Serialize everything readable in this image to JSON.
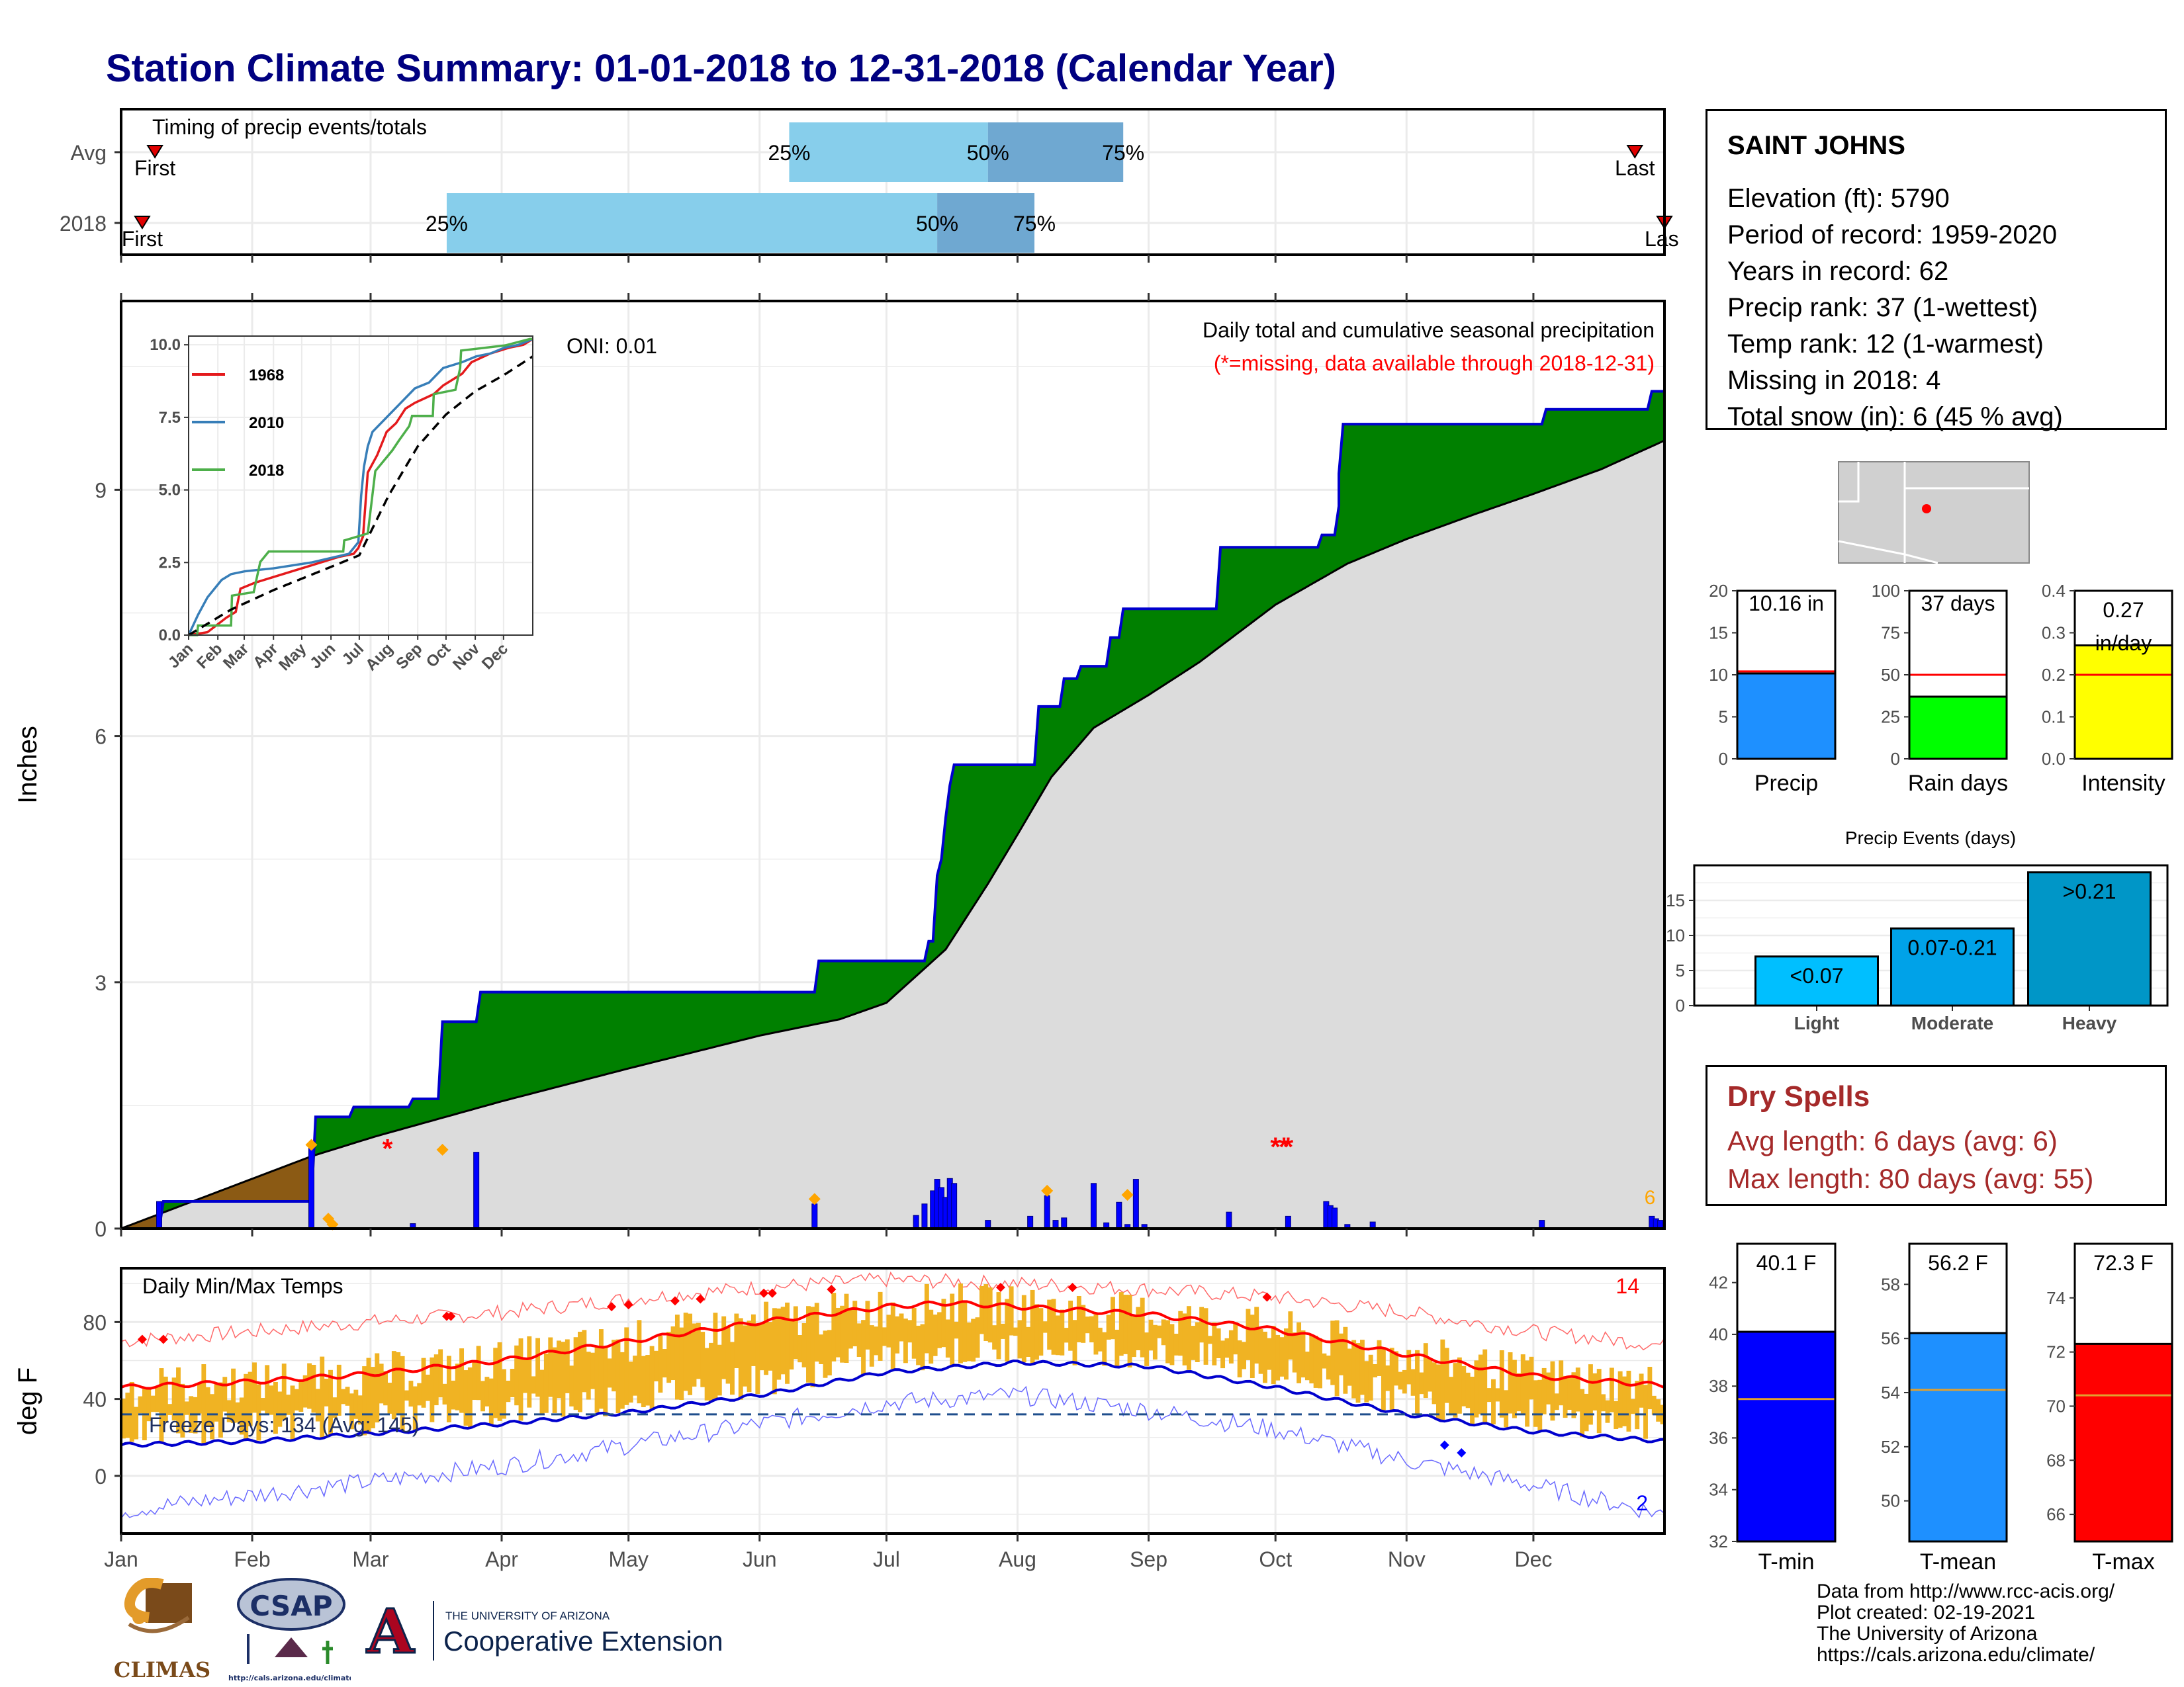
{
  "title": "Station Climate Summary: 01-01-2018 to 12-31-2018 (Calendar Year)",
  "colors": {
    "title": "#000080",
    "light_blue": "#87ceeb",
    "mid_blue": "#6fa8d1",
    "green": "#008000",
    "brown": "#8b5a14",
    "gray_fill": "#dcdcdc",
    "bar_blue": "#0000ff",
    "orange_marker": "#ffa500",
    "red": "#ff0000",
    "temp_orange": "#f0b323",
    "tmin_blue": "#0000ff",
    "tmean_blue": "#1e90ff",
    "tmax_red": "#ff0000",
    "dry_text": "#a52a2a"
  },
  "timing": {
    "label": "Timing of precip events/totals",
    "rows": [
      "Avg",
      "2018"
    ],
    "first_label": "First",
    "last_label": "Last",
    "last_label_clipped": "Las",
    "p25": "25%",
    "p50": "50%",
    "p75": "75%"
  },
  "station": {
    "name": "SAINT JOHNS",
    "lines": [
      "Elevation (ft): 5790",
      "Period of record: 1959-2020",
      "Years in record: 62",
      "Precip rank: 37 (1-wettest)",
      "Temp rank: 12 (1-warmest)",
      "Missing in 2018: 4",
      "Total snow (in): 6 (45 % avg)"
    ]
  },
  "precip_panel": {
    "ylabel": "Inches",
    "title": "Daily total and cumulative seasonal precipitation",
    "subtitle": "(*=missing, data available through 2018-12-31)",
    "oni": "ONI: 0.01",
    "snow_count": "6"
  },
  "inset": {
    "legend": [
      "1968",
      "2010",
      "2018"
    ],
    "legend_colors": [
      "#e41a1c",
      "#377eb8",
      "#4daf4a"
    ],
    "yticks": [
      "0.0",
      "2.5",
      "5.0",
      "7.5",
      "10.0"
    ],
    "xticks": [
      "Jan",
      "Feb",
      "Mar",
      "Apr",
      "May",
      "Jun",
      "Jul",
      "Aug",
      "Sep",
      "Oct",
      "Nov",
      "Dec"
    ]
  },
  "bars_precip": [
    {
      "label": "Precip",
      "value_label": "10.16 in",
      "yticks": [
        "0",
        "5",
        "10",
        "15",
        "20"
      ]
    },
    {
      "label": "Rain days",
      "value_label": "37 days",
      "yticks": [
        "0",
        "25",
        "50",
        "75",
        "100"
      ]
    },
    {
      "label": "Intensity",
      "value_label_1": "0.27",
      "value_label_2": "in/day",
      "yticks": [
        "0.0",
        "0.1",
        "0.2",
        "0.3",
        "0.4"
      ]
    }
  ],
  "events": {
    "title": "Precip Events (days)",
    "yticks": [
      "0",
      "5",
      "10",
      "15"
    ],
    "categories": [
      "Light",
      "Moderate",
      "Heavy"
    ],
    "labels": [
      "<0.07",
      "0.07-0.21",
      ">0.21"
    ]
  },
  "dry": {
    "title": "Dry Spells",
    "avg": "Avg length: 6 days (avg: 6)",
    "max": "Max length: 80 days (avg: 55)"
  },
  "temp_panel": {
    "ylabel": "deg F",
    "title": "Daily Min/Max Temps",
    "freeze": "Freeze Days: 134 (Avg: 145)",
    "hot_count": "14",
    "cold_count": "2",
    "yticks": [
      "0",
      "40",
      "80"
    ]
  },
  "temp_bars": [
    {
      "label": "T-min",
      "value_label": "40.1 F",
      "yticks": [
        "32",
        "34",
        "36",
        "38",
        "40",
        "42"
      ]
    },
    {
      "label": "T-mean",
      "value_label": "56.2 F",
      "yticks": [
        "50",
        "52",
        "54",
        "56",
        "58"
      ]
    },
    {
      "label": "T-max",
      "value_label": "72.3 F",
      "yticks": [
        "66",
        "68",
        "70",
        "72",
        "74"
      ]
    }
  ],
  "footer": {
    "lines": [
      "Data from http://www.rcc-acis.org/",
      "Plot created: 02-19-2021",
      "The University of Arizona",
      "https://cals.arizona.edu/climate/"
    ],
    "logo_climas": "CLIMAS",
    "logo_csap": "CSAP",
    "logo_csap_url": "http://cals.arizona.edu/climate",
    "ua_small": "THE UNIVERSITY OF ARIZONA",
    "ua_big": "Cooperative Extension",
    "ua_letter": "A"
  },
  "chart_data": [
    {
      "type": "bar",
      "name": "timing",
      "categories": [
        "Avg",
        "2018"
      ],
      "x_axis": "day of year",
      "series": [
        {
          "name": "Avg",
          "first_day": 8,
          "p25_day": 158,
          "p50_day": 205,
          "p75_day": 237,
          "last_day": 358
        },
        {
          "name": "2018",
          "first_day": 5,
          "p25_day": 77,
          "p50_day": 193,
          "p75_day": 216,
          "last_day": 365
        }
      ]
    },
    {
      "type": "area",
      "name": "cumulative_precip",
      "xlabel": "",
      "ylabel": "Inches",
      "ylim": [
        0,
        11.3
      ],
      "xlim": [
        0,
        365
      ],
      "x_ticks": [
        "Jan",
        "Feb",
        "Mar",
        "Apr",
        "May",
        "Jun",
        "Jul",
        "Aug",
        "Sep",
        "Oct",
        "Nov",
        "Dec"
      ],
      "x_tick_days": [
        0,
        31,
        59,
        90,
        120,
        151,
        181,
        212,
        243,
        273,
        304,
        334
      ],
      "y_ticks": [
        0,
        3,
        6,
        9
      ],
      "series": [
        {
          "name": "2018",
          "x": [
            0,
            9,
            10,
            45,
            46,
            54,
            55,
            68,
            69,
            75,
            76,
            84,
            85,
            164,
            165,
            190,
            191,
            192,
            193,
            194,
            195,
            196,
            197,
            198,
            199,
            216,
            217,
            222,
            223,
            226,
            227,
            233,
            234,
            236,
            237,
            259,
            260,
            283,
            284,
            287,
            288,
            288,
            289,
            336,
            337,
            361,
            362,
            365
          ],
          "y": [
            0,
            0,
            0.33,
            0.33,
            1.36,
            1.36,
            1.48,
            1.48,
            1.58,
            1.58,
            2.52,
            2.52,
            2.88,
            2.88,
            3.26,
            3.26,
            3.5,
            3.5,
            4.3,
            4.5,
            5.0,
            5.4,
            5.65,
            5.65,
            5.65,
            5.65,
            6.36,
            6.36,
            6.7,
            6.7,
            6.85,
            6.85,
            7.2,
            7.2,
            7.55,
            7.55,
            8.3,
            8.3,
            8.45,
            8.45,
            8.8,
            9.2,
            9.8,
            9.8,
            9.98,
            9.98,
            10.2,
            10.2
          ]
        },
        {
          "name": "average",
          "x": [
            0,
            45,
            60,
            90,
            120,
            151,
            170,
            181,
            195,
            205,
            212,
            220,
            230,
            243,
            255,
            273,
            290,
            304,
            320,
            334,
            350,
            365
          ],
          "y": [
            0,
            0.88,
            1.12,
            1.55,
            1.95,
            2.35,
            2.55,
            2.75,
            3.4,
            4.2,
            4.8,
            5.5,
            6.1,
            6.5,
            6.9,
            7.6,
            8.1,
            8.4,
            8.7,
            8.95,
            9.25,
            9.6
          ]
        }
      ],
      "daily_precip": {
        "day": [
          9,
          45,
          69,
          84,
          164,
          188,
          190,
          192,
          193,
          194,
          195,
          196,
          197,
          205,
          215,
          219,
          221,
          223,
          230,
          233,
          236,
          238,
          240,
          242,
          262,
          276,
          285,
          286,
          287,
          290,
          296,
          336,
          362,
          363,
          364
        ],
        "in": [
          0.33,
          1.0,
          0.06,
          0.93,
          0.3,
          0.16,
          0.3,
          0.46,
          0.6,
          0.5,
          0.38,
          0.61,
          0.55,
          0.1,
          0.15,
          0.4,
          0.1,
          0.13,
          0.55,
          0.07,
          0.32,
          0.05,
          0.6,
          0.05,
          0.2,
          0.15,
          0.33,
          0.28,
          0.25,
          0.05,
          0.08,
          0.1,
          0.15,
          0.12,
          0.1
        ]
      }
    },
    {
      "type": "line",
      "name": "inset_cumulative",
      "ylim": [
        0,
        10.3
      ],
      "y_ticks": [
        0,
        2.5,
        5,
        7.5,
        10
      ],
      "series": [
        {
          "name": "1968",
          "x": [
            0,
            20,
            40,
            50,
            55,
            70,
            90,
            110,
            130,
            160,
            175,
            180,
            185,
            190,
            200,
            210,
            220,
            230,
            240,
            260,
            270,
            290,
            300,
            320,
            340,
            355,
            365
          ],
          "y": [
            0,
            0.1,
            0.6,
            0.8,
            1.6,
            1.8,
            2.0,
            2.2,
            2.4,
            2.7,
            2.8,
            3.0,
            3.4,
            5.6,
            6.2,
            7.0,
            7.3,
            7.8,
            8.0,
            8.3,
            8.6,
            9.0,
            9.4,
            9.7,
            9.9,
            10.0,
            10.2
          ]
        },
        {
          "name": "2010",
          "x": [
            0,
            10,
            20,
            35,
            45,
            60,
            90,
            130,
            170,
            180,
            183,
            186,
            190,
            195,
            210,
            225,
            240,
            255,
            270,
            290,
            305,
            320,
            335,
            350,
            365
          ],
          "y": [
            0,
            0.7,
            1.3,
            1.9,
            2.1,
            2.2,
            2.3,
            2.5,
            2.8,
            3.2,
            4.8,
            5.8,
            6.5,
            7.0,
            7.5,
            8.0,
            8.5,
            8.7,
            9.2,
            9.4,
            9.6,
            9.7,
            9.9,
            10.0,
            10.2
          ]
        },
        {
          "name": "2018",
          "x": [
            0,
            9,
            10,
            45,
            46,
            69,
            76,
            85,
            164,
            165,
            190,
            193,
            198,
            216,
            223,
            234,
            237,
            259,
            260,
            283,
            288,
            289,
            336,
            362,
            365
          ],
          "y": [
            0,
            0,
            0.33,
            0.33,
            1.36,
            1.48,
            2.52,
            2.88,
            2.88,
            3.26,
            3.5,
            4.3,
            5.65,
            6.36,
            6.7,
            7.2,
            7.55,
            7.55,
            8.3,
            8.45,
            9.2,
            9.8,
            9.98,
            10.2,
            10.2
          ]
        },
        {
          "name": "average",
          "x": [
            0,
            45,
            90,
            151,
            181,
            212,
            243,
            273,
            304,
            334,
            365
          ],
          "y": [
            0,
            0.88,
            1.55,
            2.35,
            2.75,
            4.8,
            6.5,
            7.6,
            8.4,
            8.95,
            9.6
          ]
        }
      ]
    },
    {
      "type": "bar",
      "name": "annual_totals",
      "categories": [
        "Precip",
        "Rain days",
        "Intensity"
      ],
      "values": [
        10.16,
        37,
        0.27
      ],
      "averages": [
        10.4,
        50,
        0.2
      ],
      "ylims": [
        [
          0,
          20
        ],
        [
          0,
          100
        ],
        [
          0,
          0.4
        ]
      ],
      "bar_colors": [
        "#1e90ff",
        "#00ff00",
        "#ffff00"
      ]
    },
    {
      "type": "bar",
      "name": "precip_events",
      "title": "Precip Events (days)",
      "categories": [
        "Light",
        "Moderate",
        "Heavy"
      ],
      "values": [
        7,
        11,
        19
      ],
      "ylim": [
        0,
        20
      ],
      "bar_colors": [
        "#00bfff",
        "#00a2e8",
        "#0096c7"
      ]
    },
    {
      "type": "line",
      "name": "daily_temps",
      "ylabel": "deg F",
      "ylim": [
        -30,
        108
      ],
      "y_ticks": [
        0,
        40,
        80
      ],
      "freeze_line": 32,
      "series": [
        {
          "name": "avg_max",
          "x": [
            0,
            31,
            59,
            90,
            120,
            151,
            181,
            196,
            212,
            243,
            273,
            304,
            334,
            365
          ],
          "y": [
            46,
            49,
            53,
            60,
            70,
            80,
            88,
            90,
            88,
            84,
            76,
            63,
            52,
            47
          ]
        },
        {
          "name": "avg_min",
          "x": [
            0,
            31,
            59,
            90,
            120,
            151,
            181,
            212,
            243,
            273,
            304,
            334,
            365
          ],
          "y": [
            16,
            18,
            22,
            27,
            33,
            42,
            54,
            59,
            57,
            46,
            32,
            23,
            18
          ]
        },
        {
          "name": "record_max",
          "x": [
            0,
            31,
            59,
            90,
            120,
            151,
            181,
            212,
            243,
            273,
            304,
            334,
            365
          ],
          "y": [
            70,
            75,
            80,
            85,
            92,
            98,
            102,
            100,
            97,
            93,
            85,
            75,
            68
          ]
        },
        {
          "name": "record_min",
          "x": [
            0,
            31,
            59,
            90,
            120,
            151,
            181,
            212,
            243,
            273,
            304,
            334,
            365
          ],
          "y": [
            -18,
            -10,
            -3,
            5,
            16,
            27,
            38,
            42,
            34,
            24,
            8,
            -5,
            -20
          ]
        }
      ]
    },
    {
      "type": "bar",
      "name": "annual_temps",
      "categories": [
        "T-min",
        "T-mean",
        "T-max"
      ],
      "values": [
        40.1,
        56.2,
        72.3
      ],
      "averages": [
        37.5,
        54.1,
        70.4
      ],
      "ylims": [
        [
          32,
          43.5
        ],
        [
          48.5,
          59.5
        ],
        [
          65,
          76
        ]
      ],
      "bar_colors": [
        "#0000ff",
        "#1e90ff",
        "#ff0000"
      ]
    }
  ]
}
